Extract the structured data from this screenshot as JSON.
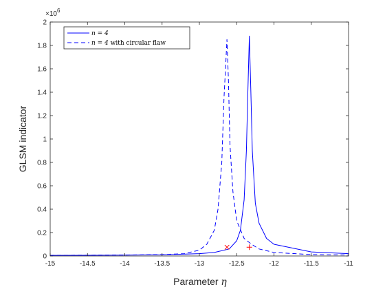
{
  "chart_data": {
    "type": "line",
    "title": "",
    "xlabel": "Parameter",
    "xlabel_symbol": "η",
    "ylabel": "GLSM indicator",
    "y_exponent_base": "×10",
    "y_exponent_power": "6",
    "xlim": [
      -15,
      -11
    ],
    "ylim": [
      0,
      2
    ],
    "xticks": [
      -15,
      -14.5,
      -14,
      -13.5,
      -13,
      -12.5,
      -12,
      -11.5,
      -11
    ],
    "xtick_labels": [
      "-15",
      "-14.5",
      "-14",
      "-13.5",
      "-13",
      "-12.5",
      "-12",
      "-11.5",
      "-11"
    ],
    "yticks": [
      0,
      0.2,
      0.4,
      0.6,
      0.8,
      1,
      1.2,
      1.4,
      1.6,
      1.8,
      2
    ],
    "ytick_labels": [
      "0",
      "0.2",
      "0.4",
      "0.6",
      "0.8",
      "1",
      "1.2",
      "1.4",
      "1.6",
      "1.8",
      "2"
    ],
    "grid": false,
    "legend_position": "top-left",
    "series": [
      {
        "name": "n = 4",
        "style": "solid",
        "color": "#0000ff",
        "x": [
          -15,
          -14,
          -13.5,
          -13,
          -12.8,
          -12.6,
          -12.5,
          -12.45,
          -12.4,
          -12.37,
          -12.35,
          -12.33,
          -12.31,
          -12.29,
          -12.25,
          -12.2,
          -12.1,
          -12,
          -11.5,
          -11
        ],
        "values": [
          0.005,
          0.007,
          0.01,
          0.02,
          0.03,
          0.06,
          0.13,
          0.22,
          0.48,
          0.9,
          1.4,
          1.88,
          1.4,
          0.9,
          0.45,
          0.28,
          0.15,
          0.1,
          0.035,
          0.02
        ]
      },
      {
        "name": "n = 4 with circular flaw",
        "style": "dashed",
        "color": "#0000ff",
        "x": [
          -15,
          -14,
          -13.5,
          -13.2,
          -13,
          -12.9,
          -12.8,
          -12.75,
          -12.7,
          -12.67,
          -12.65,
          -12.63,
          -12.61,
          -12.59,
          -12.55,
          -12.5,
          -12.4,
          -12.3,
          -12.2,
          -12,
          -11.5,
          -11
        ],
        "values": [
          0.005,
          0.008,
          0.012,
          0.02,
          0.05,
          0.1,
          0.22,
          0.4,
          0.8,
          1.35,
          1.6,
          1.85,
          1.5,
          0.95,
          0.55,
          0.3,
          0.15,
          0.1,
          0.06,
          0.03,
          0.012,
          0.008
        ]
      }
    ],
    "markers": [
      {
        "symbol": "×",
        "x": -12.63,
        "y": 0.075,
        "color": "#ff0000"
      },
      {
        "symbol": "+",
        "x": -12.33,
        "y": 0.075,
        "color": "#ff0000"
      }
    ],
    "legend": [
      {
        "label_math": "n = 4",
        "label_text": ""
      },
      {
        "label_math": "n = 4",
        "label_text": " with circular flaw"
      }
    ]
  }
}
